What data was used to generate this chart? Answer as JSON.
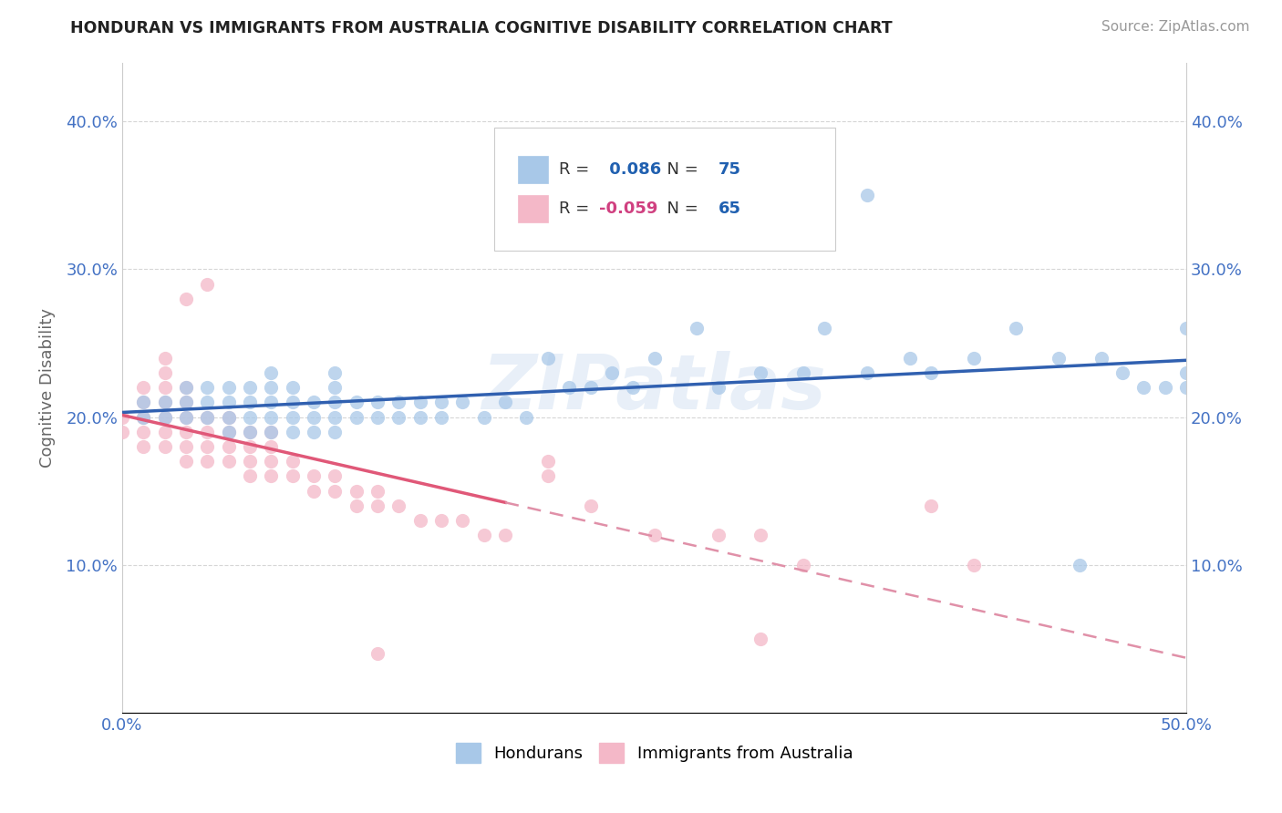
{
  "title": "HONDURAN VS IMMIGRANTS FROM AUSTRALIA COGNITIVE DISABILITY CORRELATION CHART",
  "source": "Source: ZipAtlas.com",
  "ylabel": "Cognitive Disability",
  "xlim": [
    0.0,
    0.5
  ],
  "ylim": [
    0.0,
    0.44
  ],
  "yticks": [
    0.1,
    0.2,
    0.3,
    0.4
  ],
  "ytick_labels": [
    "10.0%",
    "20.0%",
    "30.0%",
    "40.0%"
  ],
  "r_honduran": 0.086,
  "n_honduran": 75,
  "r_australia": -0.059,
  "n_australia": 65,
  "blue_color": "#a8c8e8",
  "pink_color": "#f4b8c8",
  "blue_line_color": "#3060b0",
  "pink_line_solid_color": "#e05878",
  "pink_line_dash_color": "#e090a8",
  "watermark": "ZIPatlas",
  "blue_scatter_x": [
    0.01,
    0.01,
    0.02,
    0.02,
    0.03,
    0.03,
    0.03,
    0.04,
    0.04,
    0.04,
    0.05,
    0.05,
    0.05,
    0.05,
    0.06,
    0.06,
    0.06,
    0.06,
    0.07,
    0.07,
    0.07,
    0.07,
    0.07,
    0.08,
    0.08,
    0.08,
    0.08,
    0.09,
    0.09,
    0.09,
    0.1,
    0.1,
    0.1,
    0.1,
    0.1,
    0.11,
    0.11,
    0.12,
    0.12,
    0.13,
    0.13,
    0.14,
    0.14,
    0.15,
    0.15,
    0.16,
    0.17,
    0.18,
    0.19,
    0.2,
    0.21,
    0.22,
    0.23,
    0.24,
    0.25,
    0.27,
    0.28,
    0.3,
    0.32,
    0.33,
    0.35,
    0.37,
    0.38,
    0.4,
    0.42,
    0.44,
    0.46,
    0.47,
    0.48,
    0.49,
    0.5,
    0.5,
    0.5,
    0.35,
    0.45
  ],
  "blue_scatter_y": [
    0.21,
    0.2,
    0.2,
    0.21,
    0.2,
    0.21,
    0.22,
    0.2,
    0.21,
    0.22,
    0.19,
    0.2,
    0.21,
    0.22,
    0.19,
    0.2,
    0.21,
    0.22,
    0.19,
    0.2,
    0.21,
    0.22,
    0.23,
    0.19,
    0.2,
    0.21,
    0.22,
    0.19,
    0.2,
    0.21,
    0.19,
    0.2,
    0.21,
    0.22,
    0.23,
    0.2,
    0.21,
    0.2,
    0.21,
    0.2,
    0.21,
    0.2,
    0.21,
    0.2,
    0.21,
    0.21,
    0.2,
    0.21,
    0.2,
    0.24,
    0.22,
    0.22,
    0.23,
    0.22,
    0.24,
    0.26,
    0.22,
    0.23,
    0.23,
    0.26,
    0.23,
    0.24,
    0.23,
    0.24,
    0.26,
    0.24,
    0.24,
    0.23,
    0.22,
    0.22,
    0.22,
    0.23,
    0.26,
    0.35,
    0.1
  ],
  "pink_scatter_x": [
    0.0,
    0.0,
    0.01,
    0.01,
    0.01,
    0.01,
    0.01,
    0.02,
    0.02,
    0.02,
    0.02,
    0.02,
    0.02,
    0.02,
    0.03,
    0.03,
    0.03,
    0.03,
    0.03,
    0.03,
    0.03,
    0.04,
    0.04,
    0.04,
    0.04,
    0.04,
    0.05,
    0.05,
    0.05,
    0.05,
    0.06,
    0.06,
    0.06,
    0.06,
    0.07,
    0.07,
    0.07,
    0.07,
    0.08,
    0.08,
    0.09,
    0.09,
    0.1,
    0.1,
    0.11,
    0.11,
    0.12,
    0.12,
    0.13,
    0.14,
    0.15,
    0.16,
    0.17,
    0.18,
    0.2,
    0.22,
    0.25,
    0.28,
    0.3,
    0.32,
    0.38,
    0.4,
    0.12,
    0.2,
    0.3
  ],
  "pink_scatter_y": [
    0.19,
    0.2,
    0.18,
    0.19,
    0.2,
    0.21,
    0.22,
    0.18,
    0.19,
    0.2,
    0.21,
    0.22,
    0.23,
    0.24,
    0.17,
    0.18,
    0.19,
    0.2,
    0.21,
    0.22,
    0.28,
    0.17,
    0.18,
    0.19,
    0.2,
    0.29,
    0.17,
    0.18,
    0.19,
    0.2,
    0.16,
    0.17,
    0.18,
    0.19,
    0.16,
    0.17,
    0.18,
    0.19,
    0.16,
    0.17,
    0.15,
    0.16,
    0.15,
    0.16,
    0.14,
    0.15,
    0.14,
    0.15,
    0.14,
    0.13,
    0.13,
    0.13,
    0.12,
    0.12,
    0.17,
    0.14,
    0.12,
    0.12,
    0.12,
    0.1,
    0.14,
    0.1,
    0.04,
    0.16,
    0.05
  ]
}
